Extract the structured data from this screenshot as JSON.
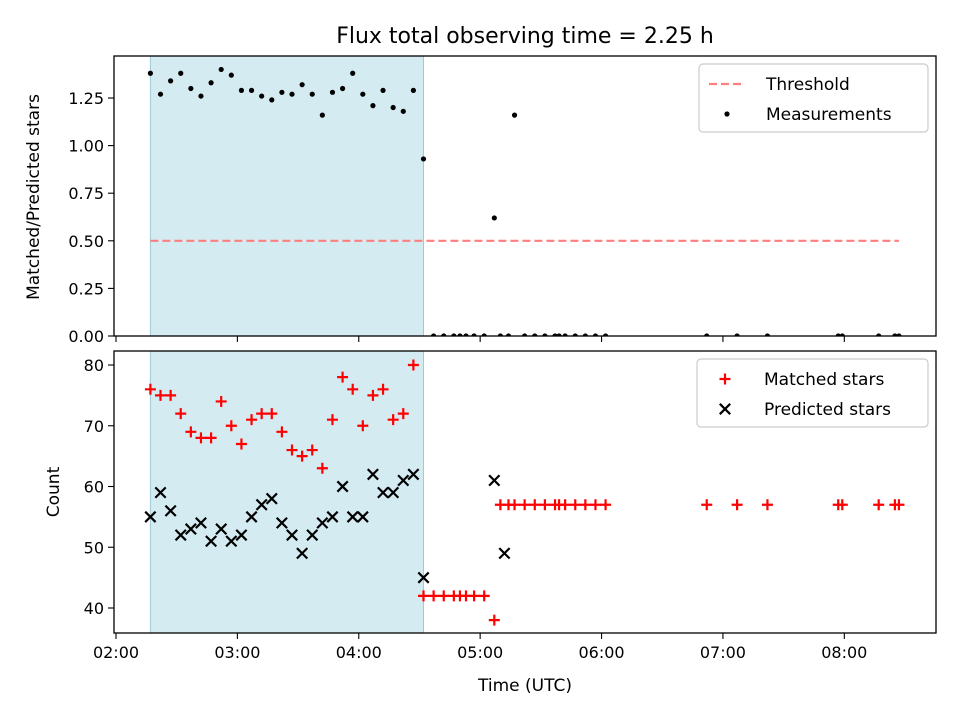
{
  "chart_data": [
    {
      "type": "scatter",
      "title": "Flux total observing time = 2.25 h",
      "xlabel": "",
      "ylabel": "Matched/Predicted stars",
      "xlim": [
        "02:00",
        "08:30"
      ],
      "ylim": [
        0,
        1.45
      ],
      "yticks": [
        0.0,
        0.25,
        0.5,
        0.75,
        1.0,
        1.25
      ],
      "ytick_labels": [
        "0.00",
        "0.25",
        "0.50",
        "0.75",
        "1.00",
        "1.25"
      ],
      "shaded_region": {
        "x": [
          "02:17",
          "04:32"
        ],
        "color": "#add8e6"
      },
      "legend": {
        "position": "upper right",
        "entries": [
          "Threshold",
          "Measurements"
        ]
      },
      "threshold": {
        "name": "Threshold",
        "value": 0.5,
        "x": [
          "02:17",
          "08:27"
        ],
        "color": "#ff7f7f",
        "style": "dashed"
      },
      "series": [
        {
          "name": "Measurements",
          "marker": "dot",
          "color": "#000000",
          "x": [
            "02:17",
            "02:22",
            "02:27",
            "02:32",
            "02:37",
            "02:42",
            "02:47",
            "02:52",
            "02:57",
            "03:02",
            "03:07",
            "03:12",
            "03:17",
            "03:22",
            "03:27",
            "03:32",
            "03:37",
            "03:42",
            "03:47",
            "03:52",
            "03:57",
            "04:02",
            "04:07",
            "04:12",
            "04:17",
            "04:22",
            "04:27",
            "04:32",
            "04:37",
            "04:42",
            "04:47",
            "04:50",
            "04:53",
            "04:57",
            "05:02",
            "05:07",
            "05:10",
            "05:14",
            "05:17",
            "05:22",
            "05:27",
            "05:32",
            "05:37",
            "05:39",
            "05:42",
            "05:47",
            "05:52",
            "05:57",
            "06:02",
            "06:52",
            "07:07",
            "07:22",
            "07:57",
            "07:59",
            "08:17",
            "08:25",
            "08:27"
          ],
          "y": [
            1.38,
            1.27,
            1.34,
            1.38,
            1.3,
            1.26,
            1.33,
            1.4,
            1.37,
            1.29,
            1.29,
            1.26,
            1.24,
            1.28,
            1.27,
            1.32,
            1.27,
            1.16,
            1.28,
            1.3,
            1.38,
            1.27,
            1.21,
            1.29,
            1.2,
            1.18,
            1.29,
            0.93,
            0,
            0,
            0,
            0,
            0,
            0,
            0,
            0.62,
            0,
            0,
            1.16,
            0,
            0,
            0,
            0,
            0,
            0,
            0,
            0,
            0,
            0,
            0,
            0,
            0,
            0,
            0,
            0,
            0,
            0
          ]
        }
      ]
    },
    {
      "type": "scatter",
      "title": "",
      "xlabel": "Time (UTC)",
      "ylabel": "Count",
      "xlim": [
        "02:00",
        "08:30"
      ],
      "ylim": [
        36,
        82
      ],
      "xticks": [
        "02:00",
        "03:00",
        "04:00",
        "05:00",
        "06:00",
        "07:00",
        "08:00"
      ],
      "yticks": [
        40,
        50,
        60,
        70,
        80
      ],
      "ytick_labels": [
        "40",
        "50",
        "60",
        "70",
        "80"
      ],
      "shaded_region": {
        "x": [
          "02:17",
          "04:32"
        ],
        "color": "#add8e6"
      },
      "legend": {
        "position": "upper right",
        "entries": [
          "Matched stars",
          "Predicted stars"
        ]
      },
      "series": [
        {
          "name": "Matched stars",
          "marker": "plus",
          "color": "#ff0000",
          "x": [
            "02:17",
            "02:22",
            "02:27",
            "02:32",
            "02:37",
            "02:42",
            "02:47",
            "02:52",
            "02:57",
            "03:02",
            "03:07",
            "03:12",
            "03:17",
            "03:22",
            "03:27",
            "03:32",
            "03:37",
            "03:42",
            "03:47",
            "03:52",
            "03:57",
            "04:02",
            "04:07",
            "04:12",
            "04:17",
            "04:22",
            "04:27",
            "04:32",
            "04:37",
            "04:42",
            "04:47",
            "04:50",
            "04:53",
            "04:57",
            "05:02",
            "05:07",
            "05:10",
            "05:14",
            "05:17",
            "05:22",
            "05:27",
            "05:32",
            "05:37",
            "05:39",
            "05:42",
            "05:47",
            "05:52",
            "05:57",
            "06:02",
            "06:52",
            "07:07",
            "07:22",
            "07:57",
            "07:59",
            "08:17",
            "08:25",
            "08:27"
          ],
          "y": [
            76,
            75,
            75,
            72,
            69,
            68,
            68,
            74,
            70,
            67,
            71,
            72,
            72,
            69,
            66,
            65,
            66,
            63,
            71,
            78,
            76,
            70,
            75,
            76,
            71,
            72,
            80,
            42,
            42,
            42,
            42,
            42,
            42,
            42,
            42,
            38,
            57,
            57,
            57,
            57,
            57,
            57,
            57,
            57,
            57,
            57,
            57,
            57,
            57,
            57,
            57,
            57,
            57,
            57,
            57,
            57,
            57
          ]
        },
        {
          "name": "Predicted stars",
          "marker": "x",
          "color": "#000000",
          "x": [
            "02:17",
            "02:22",
            "02:27",
            "02:32",
            "02:37",
            "02:42",
            "02:47",
            "02:52",
            "02:57",
            "03:02",
            "03:07",
            "03:12",
            "03:17",
            "03:22",
            "03:27",
            "03:32",
            "03:37",
            "03:42",
            "03:47",
            "03:52",
            "03:57",
            "04:02",
            "04:07",
            "04:12",
            "04:17",
            "04:22",
            "04:27",
            "04:32",
            "05:07",
            "05:12"
          ],
          "y": [
            55,
            59,
            56,
            52,
            53,
            54,
            51,
            53,
            51,
            52,
            55,
            57,
            58,
            54,
            52,
            49,
            52,
            54,
            55,
            60,
            55,
            55,
            62,
            59,
            59,
            61,
            62,
            45,
            61,
            49
          ]
        }
      ]
    }
  ]
}
